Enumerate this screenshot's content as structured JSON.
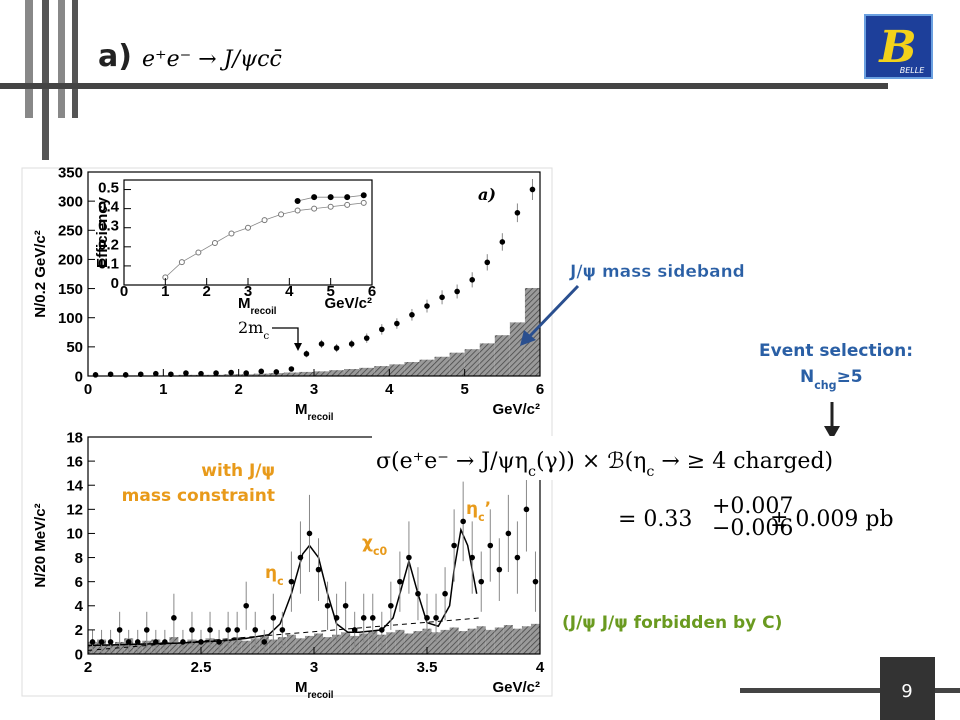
{
  "header": {
    "label": "a)",
    "formula": "e⁺e⁻ → J/ψcc̄"
  },
  "logo": {
    "letter": "B",
    "name": "BELLE"
  },
  "page_number": "9",
  "annotations": {
    "sideband": "J/ψ mass sideband",
    "event_selection": "Event selection:",
    "nchg": [
      {
        "text": "N"
      },
      {
        "sub": "chg"
      },
      {
        "text": "≥5"
      }
    ],
    "constraint": [
      "with J/ψ",
      "mass constraint"
    ],
    "eta_c": [
      {
        "text": "η"
      },
      {
        "sub": "c"
      }
    ],
    "chi_c0": [
      {
        "text": "χ"
      },
      {
        "sub": "c0"
      }
    ],
    "eta_c_prime": [
      {
        "text": "η"
      },
      {
        "sub": "c"
      },
      {
        "text": "’"
      }
    ],
    "forbidden": "(J/ψ J/ψ forbidden by C)"
  },
  "cross_section": {
    "lhs": [
      {
        "text": "σ(e⁺e⁻ → J/ψη"
      },
      {
        "sub": "c"
      },
      {
        "text": "(γ)) × ℬ(η"
      },
      {
        "sub": "c"
      },
      {
        "text": " → ≥ 4 charged)"
      }
    ],
    "value": "= 0.33",
    "plus": "+0.007",
    "minus": "−0.006",
    "rest": "± 0.009 pb"
  },
  "top_plot": {
    "type": "scatter",
    "tag": "a)",
    "ylabel": "N/0.2 GeV/c²",
    "xlabel": [
      {
        "text": "M"
      },
      {
        "sub": "recoil"
      }
    ],
    "xunit": "GeV/c²",
    "threshold": [
      {
        "text": "2m"
      },
      {
        "sub": "c"
      }
    ],
    "xlim": [
      0,
      6
    ],
    "ylim": [
      0,
      350
    ],
    "xticks": [
      0,
      1,
      2,
      3,
      4,
      5,
      6
    ],
    "yticks": [
      0,
      50,
      100,
      150,
      200,
      250,
      300,
      350
    ],
    "x": [
      0.1,
      0.3,
      0.5,
      0.7,
      0.9,
      1.1,
      1.3,
      1.5,
      1.7,
      1.9,
      2.1,
      2.3,
      2.5,
      2.7,
      2.9,
      3.1,
      3.3,
      3.5,
      3.7,
      3.9,
      4.1,
      4.3,
      4.5,
      4.7,
      4.9,
      5.1,
      5.3,
      5.5,
      5.7,
      5.9
    ],
    "values": [
      2,
      3,
      2,
      3,
      4,
      3,
      5,
      4,
      5,
      6,
      5,
      8,
      7,
      12,
      38,
      55,
      48,
      55,
      65,
      80,
      90,
      105,
      120,
      135,
      145,
      165,
      195,
      230,
      280,
      320
    ],
    "yerr": [
      2,
      2,
      2,
      2,
      2,
      2,
      3,
      2,
      3,
      3,
      3,
      3,
      3,
      4,
      6,
      7,
      7,
      7,
      8,
      9,
      9,
      10,
      11,
      12,
      12,
      13,
      14,
      15,
      16,
      18
    ],
    "sideband_bins": [
      0,
      0.2,
      0.4,
      0.6,
      0.8,
      1.0,
      1.2,
      1.4,
      1.6,
      1.8,
      2.0,
      2.2,
      2.4,
      2.6,
      2.8,
      3.0,
      3.2,
      3.4,
      3.6,
      3.8,
      4.0,
      4.2,
      4.4,
      4.6,
      4.8,
      5.0,
      5.2,
      5.4,
      5.6,
      5.8,
      6.0
    ],
    "sideband_counts": [
      0,
      0,
      1,
      1,
      1,
      1,
      2,
      2,
      2,
      3,
      3,
      4,
      5,
      6,
      7,
      8,
      10,
      12,
      14,
      17,
      20,
      24,
      28,
      33,
      40,
      46,
      56,
      70,
      92,
      151
    ],
    "inset": {
      "ylabel": "Efficiency",
      "xlabel": [
        {
          "text": "M"
        },
        {
          "sub": "recoil"
        }
      ],
      "xunit": "GeV/c²",
      "xlim": [
        0,
        6
      ],
      "ylim": [
        0,
        0.55
      ],
      "xticks": [
        0,
        1,
        2,
        3,
        4,
        5,
        6
      ],
      "yticks": [
        0,
        0.1,
        0.2,
        0.3,
        0.4,
        0.5
      ],
      "series": [
        {
          "name": "open",
          "x": [
            1,
            1.4,
            1.8,
            2.2,
            2.6,
            3,
            3.4,
            3.8,
            4.2,
            4.6,
            5,
            5.4,
            5.8
          ],
          "values": [
            0.04,
            0.12,
            0.17,
            0.22,
            0.27,
            0.3,
            0.34,
            0.37,
            0.39,
            0.4,
            0.41,
            0.42,
            0.43
          ]
        },
        {
          "name": "filled",
          "x": [
            4.2,
            4.6,
            5.0,
            5.4,
            5.8
          ],
          "values": [
            0.44,
            0.46,
            0.46,
            0.46,
            0.47
          ]
        }
      ]
    }
  },
  "bottom_plot": {
    "type": "scatter",
    "ylabel": "N/20 MeV/c²",
    "xlabel": [
      {
        "text": "M"
      },
      {
        "sub": "recoil"
      }
    ],
    "xunit": "GeV/c²",
    "xlim": [
      2,
      4
    ],
    "ylim": [
      0,
      18
    ],
    "xticks": [
      2,
      2.5,
      3,
      3.5,
      4
    ],
    "yticks": [
      0,
      2,
      4,
      6,
      8,
      10,
      12,
      14,
      16,
      18
    ],
    "x": [
      2.02,
      2.06,
      2.1,
      2.14,
      2.18,
      2.22,
      2.26,
      2.3,
      2.34,
      2.38,
      2.42,
      2.46,
      2.5,
      2.54,
      2.58,
      2.62,
      2.66,
      2.7,
      2.74,
      2.78,
      2.82,
      2.86,
      2.9,
      2.94,
      2.98,
      3.02,
      3.06,
      3.1,
      3.14,
      3.18,
      3.22,
      3.26,
      3.3,
      3.34,
      3.38,
      3.42,
      3.46,
      3.5,
      3.54,
      3.58,
      3.62,
      3.66,
      3.7,
      3.74,
      3.78,
      3.82,
      3.86,
      3.9,
      3.94,
      3.98
    ],
    "values": [
      1,
      1,
      1,
      2,
      1,
      1,
      2,
      1,
      1,
      3,
      1,
      2,
      1,
      2,
      1,
      2,
      2,
      4,
      2,
      1,
      3,
      2,
      6,
      8,
      10,
      7,
      4,
      3,
      4,
      2,
      3,
      3,
      2,
      4,
      6,
      8,
      5,
      3,
      3,
      5,
      9,
      11,
      8,
      6,
      9,
      7,
      10,
      8,
      12,
      6
    ],
    "yerr": [
      1,
      1,
      1,
      1.5,
      1,
      1,
      1.5,
      1,
      1,
      2,
      1,
      1.5,
      1,
      1.5,
      1,
      1.5,
      1.5,
      2,
      1.5,
      1,
      2,
      1.5,
      2.5,
      3,
      3.2,
      2.6,
      2,
      2,
      2,
      1.5,
      2,
      2,
      1.5,
      2,
      2.5,
      3,
      2.2,
      2,
      2,
      2.2,
      3,
      3.3,
      3,
      2.5,
      3,
      2.6,
      3.2,
      3,
      3.5,
      2.5
    ],
    "fit": {
      "x": [
        2.0,
        2.2,
        2.4,
        2.6,
        2.7,
        2.8,
        2.85,
        2.9,
        2.95,
        2.98,
        3.02,
        3.06,
        3.1,
        3.15,
        3.2,
        3.3,
        3.35,
        3.38,
        3.42,
        3.46,
        3.5,
        3.55,
        3.6,
        3.62,
        3.65,
        3.68,
        3.72
      ],
      "values": [
        0.7,
        0.8,
        0.9,
        1.1,
        1.3,
        1.6,
        2.5,
        5,
        8.3,
        9,
        8,
        5,
        2.5,
        1.8,
        1.8,
        2,
        3,
        5,
        7.7,
        5,
        2.6,
        2.3,
        4,
        7,
        10.3,
        9,
        5
      ]
    },
    "background": {
      "x": [
        2.0,
        3.74
      ],
      "values": [
        0.3,
        3
      ]
    },
    "sideband_bins": [
      2,
      2.04,
      2.08,
      2.12,
      2.16,
      2.2,
      2.24,
      2.28,
      2.32,
      2.36,
      2.4,
      2.44,
      2.48,
      2.52,
      2.56,
      2.6,
      2.64,
      2.68,
      2.72,
      2.76,
      2.8,
      2.84,
      2.88,
      2.92,
      2.96,
      3,
      3.04,
      3.08,
      3.12,
      3.16,
      3.2,
      3.24,
      3.28,
      3.32,
      3.36,
      3.4,
      3.44,
      3.48,
      3.52,
      3.56,
      3.6,
      3.64,
      3.68,
      3.72,
      3.76,
      3.8,
      3.84,
      3.88,
      3.92,
      3.96,
      4
    ],
    "sideband_counts": [
      1,
      1.2,
      0.8,
      1,
      1.3,
      0.9,
      1.1,
      1.2,
      1,
      1.4,
      0.9,
      1.2,
      1.1,
      1.3,
      1,
      1.2,
      1.4,
      1.1,
      1.3,
      1.5,
      1.2,
      1.4,
      1.6,
      1.3,
      1.5,
      1.7,
      1.4,
      1.6,
      1.8,
      1.5,
      1.7,
      1.9,
      1.6,
      1.8,
      2,
      1.7,
      1.9,
      2.1,
      1.8,
      2,
      2.2,
      1.9,
      2.1,
      2.3,
      2,
      2.2,
      2.4,
      2.1,
      2.3,
      2.5
    ]
  }
}
